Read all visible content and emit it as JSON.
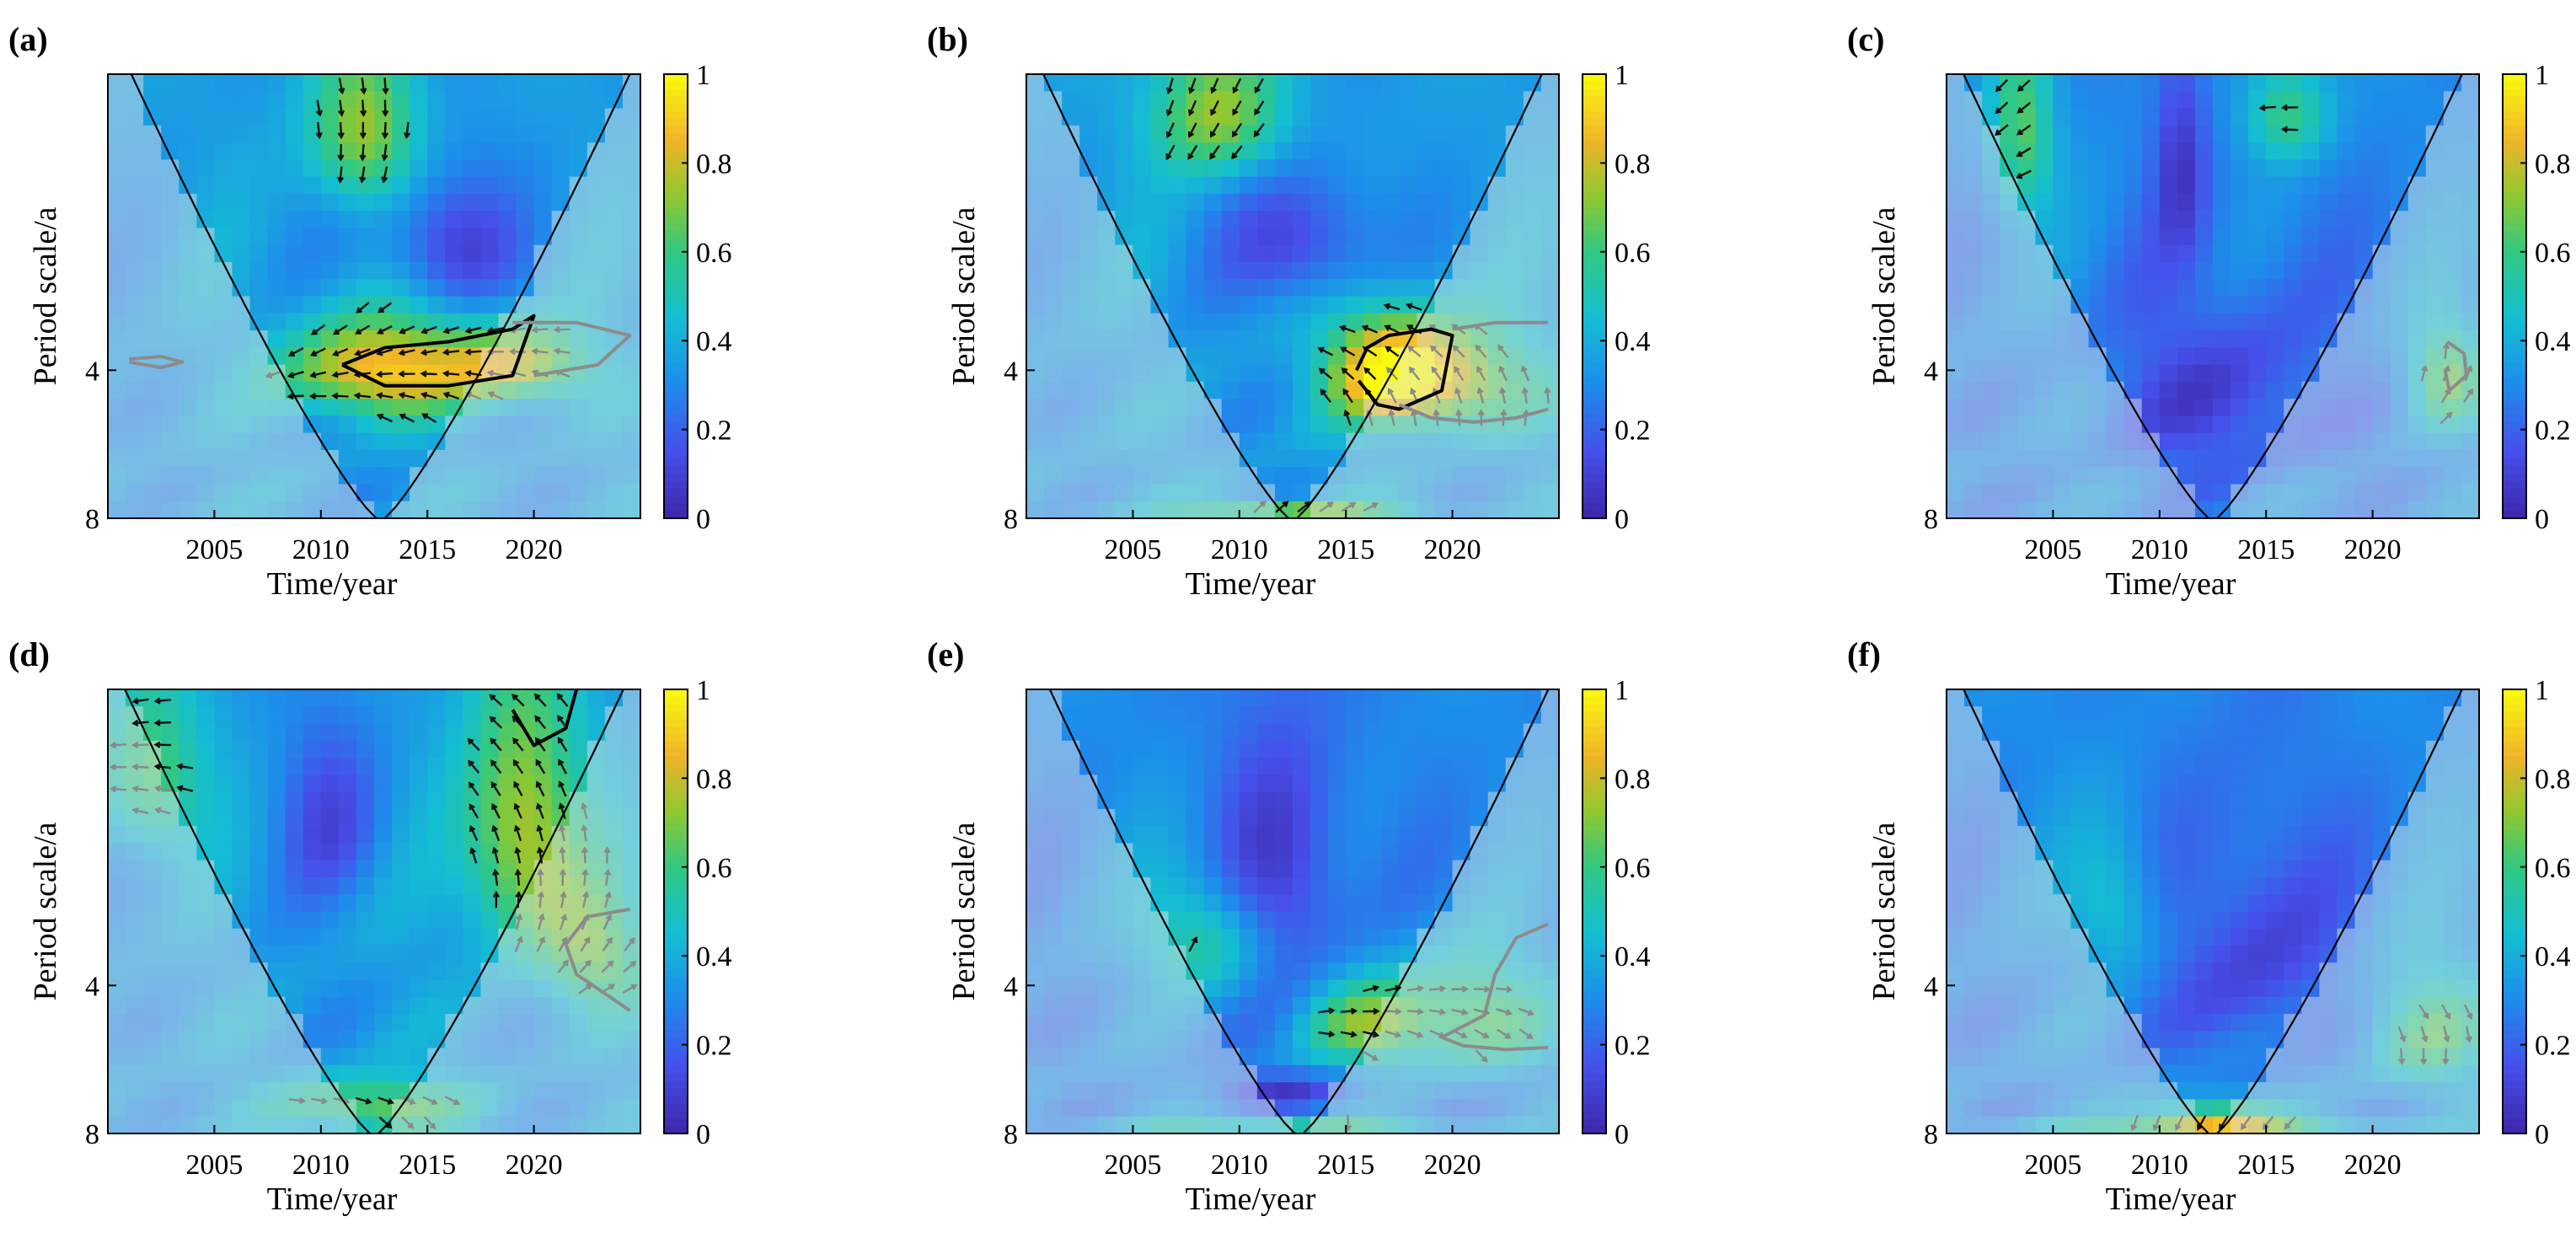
{
  "chart_data": {
    "type": "heatmap",
    "description_kind": "wavelet coherence panels",
    "colorbar": {
      "min": 0,
      "max": 1,
      "ticks": [
        "0",
        "0.2",
        "0.4",
        "0.6",
        "0.8",
        "1"
      ]
    },
    "x_range": [
      2000,
      2025
    ],
    "y_range": [
      1,
      8
    ],
    "panels": [
      {
        "label": "(a)",
        "xlabel": "Time/year",
        "ylabel": "Period scale/a",
        "xticks": [
          "2005",
          "2010",
          "2015",
          "2020"
        ],
        "yticks": [
          "4",
          "8"
        ],
        "cone_bottom_year": 2012.8,
        "background": 0.35,
        "blobs": [
          {
            "x": 2012.5,
            "y": 4.0,
            "sx": 4.2,
            "sy": 0.9,
            "v": 0.55
          },
          {
            "x": 2019.0,
            "y": 3.9,
            "sx": 3.5,
            "sy": 0.7,
            "v": 0.45
          },
          {
            "x": 2012.0,
            "y": 1.3,
            "sx": 2.5,
            "sy": 0.5,
            "v": 0.4
          },
          {
            "x": 2016.0,
            "y": 2.2,
            "sx": 3.0,
            "sy": 0.7,
            "v": -0.25
          }
        ],
        "contours": [
          {
            "style": "black",
            "points": [
              [
                2011,
                3.9
              ],
              [
                2013,
                3.6
              ],
              [
                2016,
                3.5
              ],
              [
                2019,
                3.3
              ],
              [
                2020,
                3.1
              ],
              [
                2019,
                4.1
              ],
              [
                2016,
                4.3
              ],
              [
                2013,
                4.3
              ],
              [
                2011,
                3.9
              ]
            ]
          },
          {
            "style": "gray",
            "points": [
              [
                2019,
                3.2
              ],
              [
                2022,
                3.2
              ],
              [
                2024.5,
                3.4
              ],
              [
                2023,
                3.9
              ],
              [
                2020,
                4.1
              ]
            ]
          },
          {
            "style": "gray",
            "points": [
              [
                2001,
                3.8
              ],
              [
                2002.5,
                3.75
              ],
              [
                2003.5,
                3.85
              ],
              [
                2002.5,
                3.95
              ],
              [
                2001,
                3.85
              ]
            ]
          }
        ]
      },
      {
        "label": "(b)",
        "xlabel": "Time/year",
        "ylabel": "Period scale/a",
        "xticks": [
          "2005",
          "2010",
          "2015",
          "2020"
        ],
        "yticks": [
          "4",
          "8"
        ],
        "cone_bottom_year": 2012.5,
        "background": 0.35,
        "blobs": [
          {
            "x": 2017.0,
            "y": 4.0,
            "sx": 2.8,
            "sy": 1.0,
            "v": 0.55
          },
          {
            "x": 2020.0,
            "y": 4.2,
            "sx": 4.0,
            "sy": 1.0,
            "v": 0.4
          },
          {
            "x": 2012.5,
            "y": 7.9,
            "sx": 5.0,
            "sy": 0.5,
            "v": 0.4
          },
          {
            "x": 2009.0,
            "y": 1.2,
            "sx": 3.0,
            "sy": 0.4,
            "v": 0.4
          },
          {
            "x": 2013.0,
            "y": 2.2,
            "sx": 3.5,
            "sy": 0.7,
            "v": -0.25
          }
        ],
        "contours": [
          {
            "style": "black",
            "points": [
              [
                2015.5,
                4.0
              ],
              [
                2016,
                3.6
              ],
              [
                2017,
                3.4
              ],
              [
                2019,
                3.3
              ],
              [
                2020,
                3.4
              ],
              [
                2019.5,
                4.4
              ],
              [
                2017.5,
                4.8
              ],
              [
                2016.5,
                4.7
              ],
              [
                2015.6,
                4.2
              ]
            ]
          },
          {
            "style": "gray",
            "points": [
              [
                2017.5,
                4.7
              ],
              [
                2019,
                5.0
              ],
              [
                2021,
                5.1
              ],
              [
                2023,
                5.0
              ],
              [
                2024.5,
                4.8
              ]
            ]
          },
          {
            "style": "gray",
            "points": [
              [
                2020,
                3.3
              ],
              [
                2022,
                3.2
              ],
              [
                2024.5,
                3.2
              ]
            ]
          }
        ]
      },
      {
        "label": "(c)",
        "xlabel": "Time/year",
        "ylabel": "Period scale/a",
        "xticks": [
          "2005",
          "2010",
          "2015",
          "2020"
        ],
        "yticks": [
          "4",
          "8"
        ],
        "cone_bottom_year": 2012.5,
        "background": 0.3,
        "blobs": [
          {
            "x": 2013.0,
            "y": 4.5,
            "sx": 5.0,
            "sy": 2.0,
            "v": -0.2
          },
          {
            "x": 2011.0,
            "y": 1.5,
            "sx": 1.2,
            "sy": 0.8,
            "v": -0.2
          },
          {
            "x": 2023.5,
            "y": 4.1,
            "sx": 1.8,
            "sy": 1.0,
            "v": 0.35
          },
          {
            "x": 2003.5,
            "y": 1.3,
            "sx": 1.5,
            "sy": 0.6,
            "v": 0.35
          },
          {
            "x": 2016.0,
            "y": 1.2,
            "sx": 2.0,
            "sy": 0.3,
            "v": 0.3
          }
        ],
        "contours": [
          {
            "style": "gray",
            "points": [
              [
                2023.5,
                3.5
              ],
              [
                2024.3,
                3.7
              ],
              [
                2024.4,
                4.1
              ],
              [
                2023.6,
                4.4
              ],
              [
                2023.4,
                4.0
              ]
            ]
          }
        ]
      },
      {
        "label": "(d)",
        "xlabel": "Time/year",
        "ylabel": "Period scale/a",
        "xticks": [
          "2005",
          "2010",
          "2015",
          "2020"
        ],
        "yticks": [
          "4",
          "8"
        ],
        "cone_bottom_year": 2012.5,
        "background": 0.35,
        "blobs": [
          {
            "x": 2012.5,
            "y": 7.0,
            "sx": 4.0,
            "sy": 0.9,
            "v": 0.35
          },
          {
            "x": 2019.5,
            "y": 2.0,
            "sx": 2.8,
            "sy": 1.3,
            "v": 0.45
          },
          {
            "x": 2023.0,
            "y": 3.5,
            "sx": 2.5,
            "sy": 1.0,
            "v": 0.3
          },
          {
            "x": 2010.5,
            "y": 1.8,
            "sx": 2.5,
            "sy": 0.8,
            "v": -0.2
          },
          {
            "x": 2002.0,
            "y": 1.5,
            "sx": 2.5,
            "sy": 0.6,
            "v": 0.3
          }
        ],
        "contours": [
          {
            "style": "black",
            "points": [
              [
                2019,
                1.1
              ],
              [
                2020,
                1.3
              ],
              [
                2021.5,
                1.2
              ],
              [
                2022,
                1.0
              ]
            ]
          },
          {
            "style": "gray",
            "points": [
              [
                2024.5,
                2.8
              ],
              [
                2022.5,
                2.9
              ],
              [
                2021.5,
                3.3
              ],
              [
                2022.0,
                3.8
              ],
              [
                2023.5,
                4.2
              ],
              [
                2024.5,
                4.5
              ]
            ]
          }
        ]
      },
      {
        "label": "(e)",
        "xlabel": "Time/year",
        "ylabel": "Period scale/a",
        "xticks": [
          "2005",
          "2010",
          "2015",
          "2020"
        ],
        "yticks": [
          "4",
          "8"
        ],
        "cone_bottom_year": 2012.8,
        "background": 0.3,
        "blobs": [
          {
            "x": 2008.5,
            "y": 3.2,
            "sx": 3.0,
            "sy": 0.9,
            "v": 0.3
          },
          {
            "x": 2016.0,
            "y": 4.8,
            "sx": 3.0,
            "sy": 1.0,
            "v": 0.35
          },
          {
            "x": 2021.0,
            "y": 4.6,
            "sx": 3.5,
            "sy": 1.3,
            "v": 0.35
          },
          {
            "x": 2012.0,
            "y": 2.5,
            "sx": 3.0,
            "sy": 1.5,
            "v": -0.25
          },
          {
            "x": 2012.0,
            "y": 6.5,
            "sx": 3.0,
            "sy": 0.5,
            "v": -0.2
          },
          {
            "x": 2012.5,
            "y": 7.9,
            "sx": 8.0,
            "sy": 0.4,
            "v": 0.3
          }
        ],
        "contours": [
          {
            "style": "gray",
            "points": [
              [
                2024.5,
                3.0
              ],
              [
                2023,
                3.2
              ],
              [
                2022,
                3.8
              ],
              [
                2021.5,
                4.6
              ],
              [
                2019.5,
                5.1
              ],
              [
                2020.5,
                5.3
              ],
              [
                2022.5,
                5.4
              ],
              [
                2024.5,
                5.35
              ]
            ]
          }
        ]
      },
      {
        "label": "(f)",
        "xlabel": "Time/year",
        "ylabel": "Period scale/a",
        "xticks": [
          "2005",
          "2010",
          "2015",
          "2020"
        ],
        "yticks": [
          "4",
          "8"
        ],
        "cone_bottom_year": 2012.5,
        "background": 0.3,
        "blobs": [
          {
            "x": 2012.5,
            "y": 7.5,
            "sx": 3.0,
            "sy": 0.8,
            "v": 0.4
          },
          {
            "x": 2014.5,
            "y": 3.5,
            "sx": 4.0,
            "sy": 2.0,
            "v": -0.2
          },
          {
            "x": 2008.0,
            "y": 2.8,
            "sx": 2.0,
            "sy": 0.9,
            "v": 0.2
          },
          {
            "x": 2022.5,
            "y": 5.0,
            "sx": 3.0,
            "sy": 1.5,
            "v": 0.3
          },
          {
            "x": 2012.5,
            "y": 7.9,
            "sx": 9.0,
            "sy": 0.4,
            "v": 0.3
          }
        ],
        "contours": []
      }
    ]
  }
}
